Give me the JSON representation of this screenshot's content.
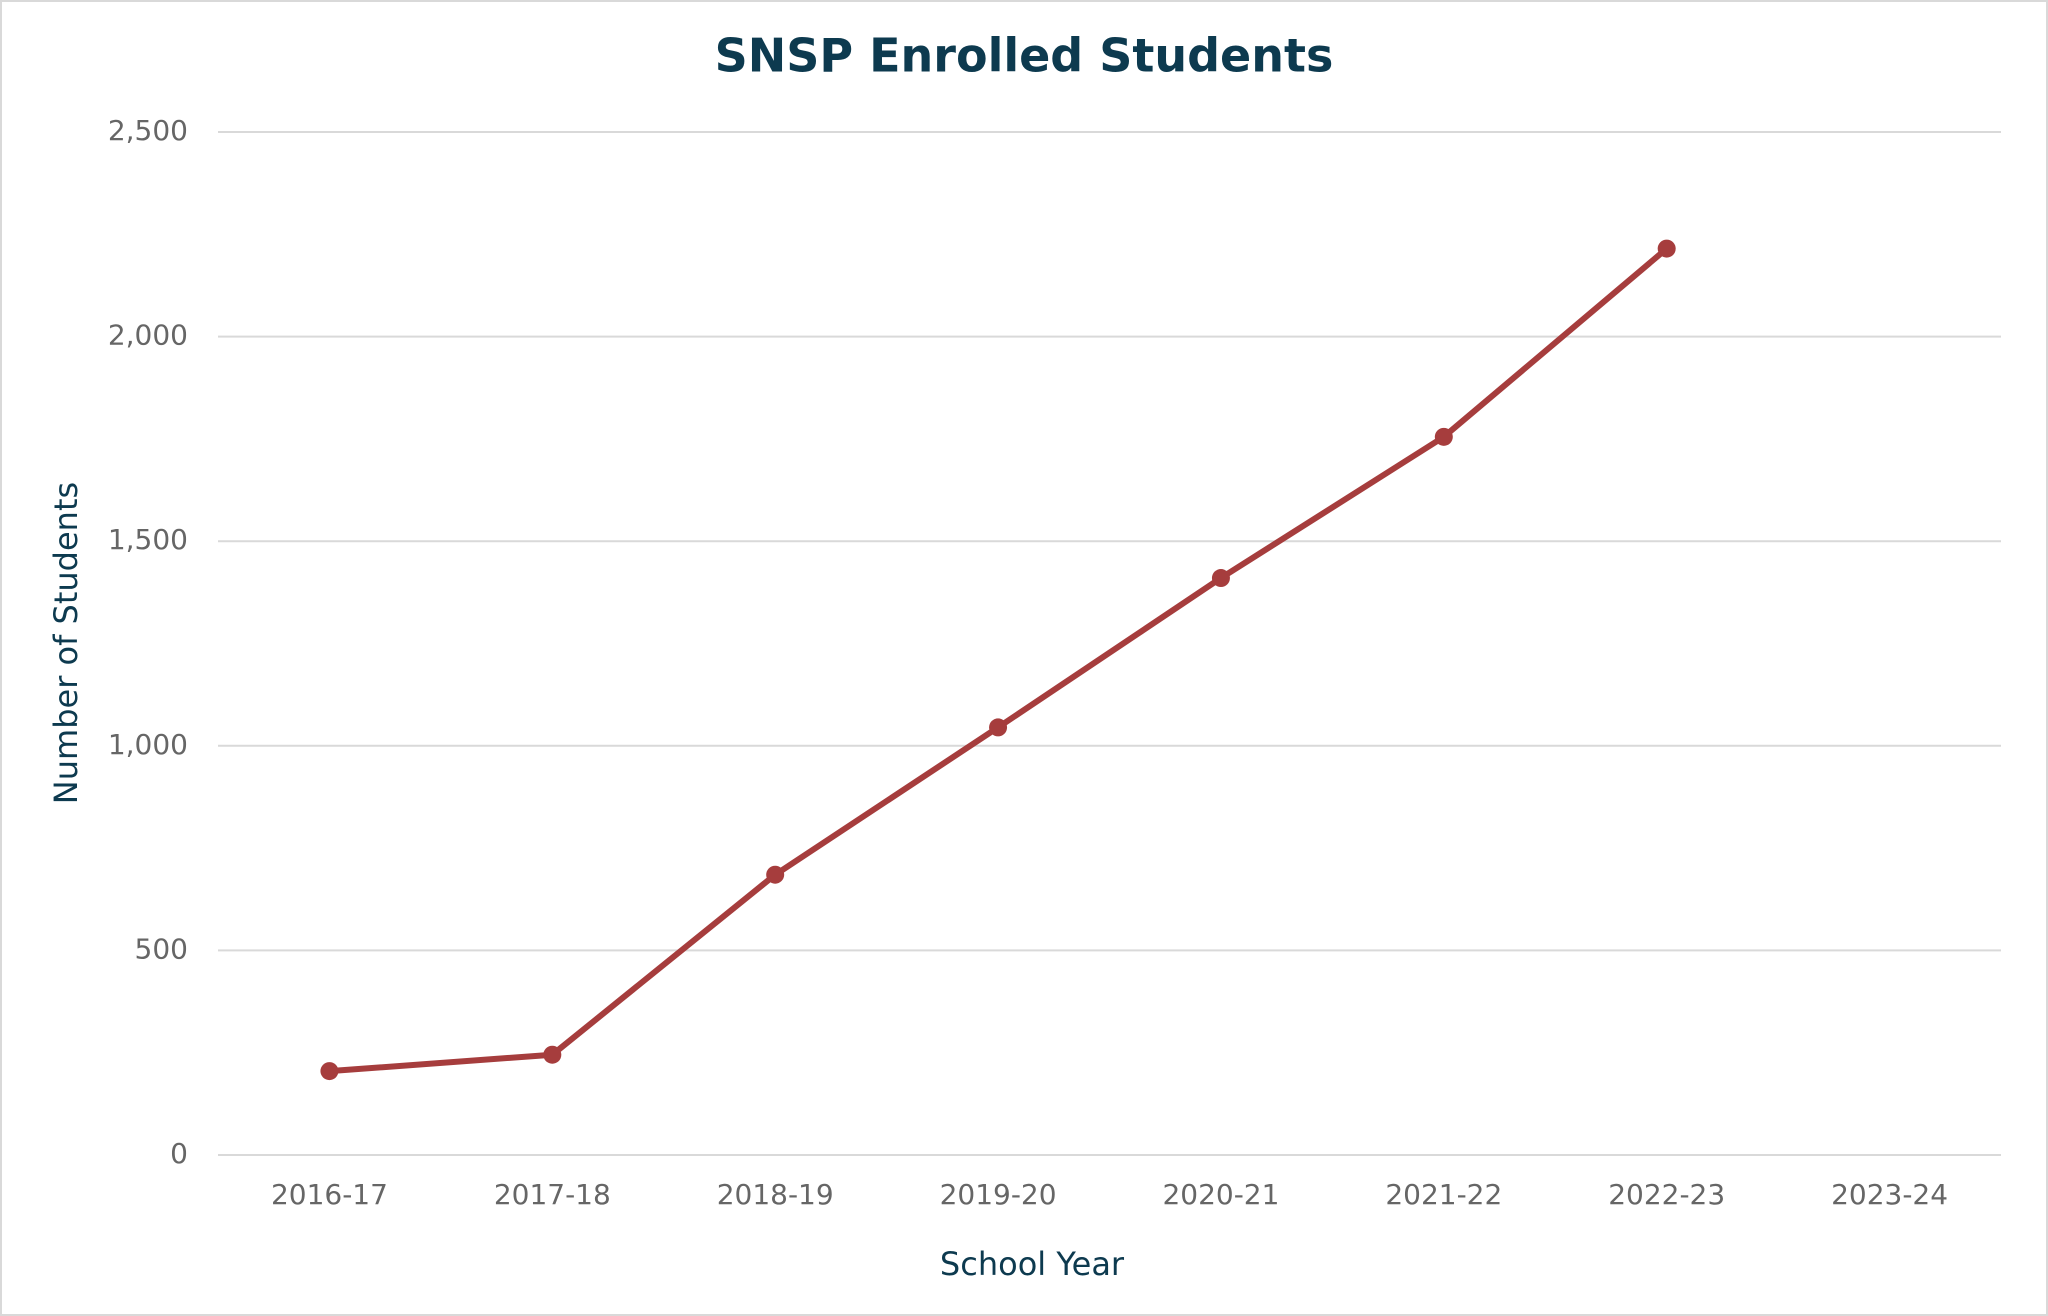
{
  "chart_data": {
    "type": "line",
    "title": "SNSP Enrolled Students",
    "x_label": "School Year",
    "y_label": "Number of Students",
    "categories": [
      "2016-17",
      "2017-18",
      "2018-19",
      "2019-20",
      "2020-21",
      "2021-22",
      "2022-23",
      "2023-24"
    ],
    "series": [
      {
        "name": "Enrolled Students",
        "color": "#a63d3d",
        "values": [
          205,
          245,
          685,
          1045,
          1410,
          1755,
          2215,
          null
        ]
      }
    ],
    "ylim": [
      0,
      2500
    ],
    "yticks": [
      0,
      500,
      {
        "value": 1000,
        "label": "1,000"
      },
      {
        "value": 1500,
        "label": "1,500"
      },
      {
        "value": 2000,
        "label": "2,000"
      },
      {
        "value": 2500,
        "label": "2,500"
      }
    ],
    "grid": true,
    "legend": false
  }
}
